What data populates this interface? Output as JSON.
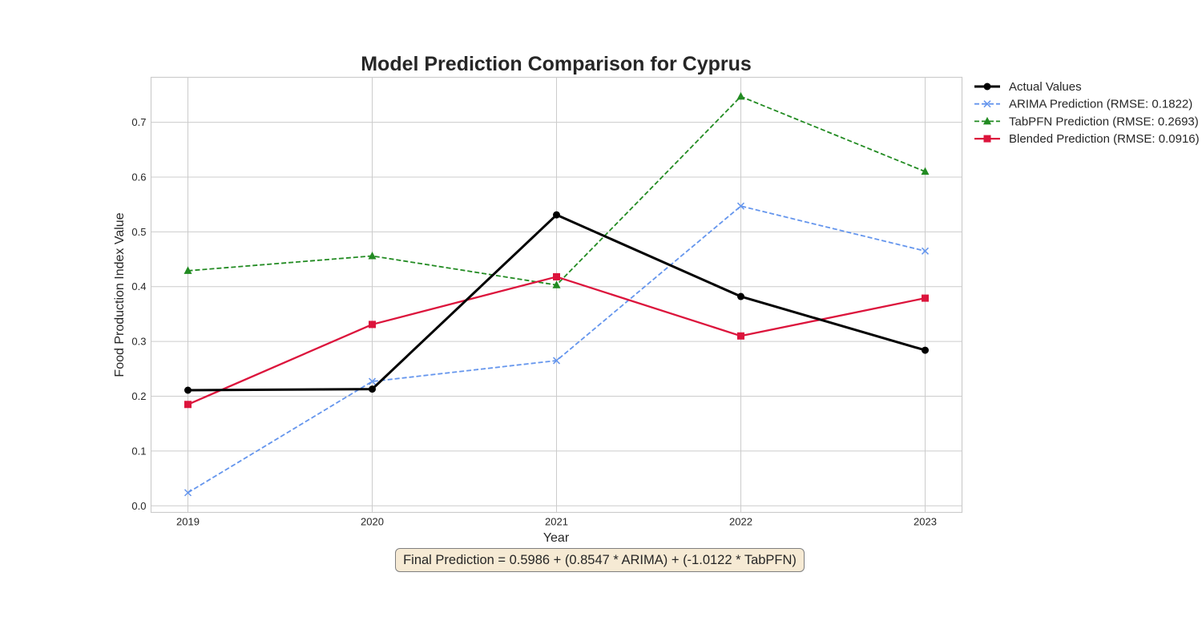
{
  "chart_data": {
    "type": "line",
    "title": "Model Prediction Comparison for Cyprus",
    "xlabel": "Year",
    "ylabel": "Food Production Index Value",
    "x": [
      "2019",
      "2020",
      "2021",
      "2022",
      "2023"
    ],
    "xlim": [
      2018.8,
      2023.2
    ],
    "ylim": [
      -0.012,
      0.782
    ],
    "yticks": [
      "0.0",
      "0.1",
      "0.2",
      "0.3",
      "0.4",
      "0.5",
      "0.6",
      "0.7"
    ],
    "grid": true,
    "legend_position": "outside top-right",
    "series": [
      {
        "name": "Actual Values",
        "values": [
          0.211,
          0.213,
          0.531,
          0.382,
          0.284
        ],
        "color": "#000000",
        "dash": "solid",
        "marker": "circle"
      },
      {
        "name": "ARIMA Prediction (RMSE: 0.1822)",
        "values": [
          0.024,
          0.227,
          0.265,
          0.547,
          0.465
        ],
        "color": "#6495ed",
        "dash": "dashed",
        "marker": "x"
      },
      {
        "name": "TabPFN Prediction (RMSE: 0.2693)",
        "values": [
          0.429,
          0.456,
          0.403,
          0.747,
          0.61
        ],
        "color": "#228b22",
        "dash": "dashed",
        "marker": "triangle"
      },
      {
        "name": "Blended Prediction (RMSE: 0.0916)",
        "values": [
          0.185,
          0.331,
          0.418,
          0.31,
          0.379
        ],
        "color": "#dc143c",
        "dash": "solid",
        "marker": "square"
      }
    ]
  },
  "annotation": {
    "formula": "Final Prediction = 0.5986 + (0.8547 * ARIMA) + (-1.0122 * TabPFN)"
  }
}
